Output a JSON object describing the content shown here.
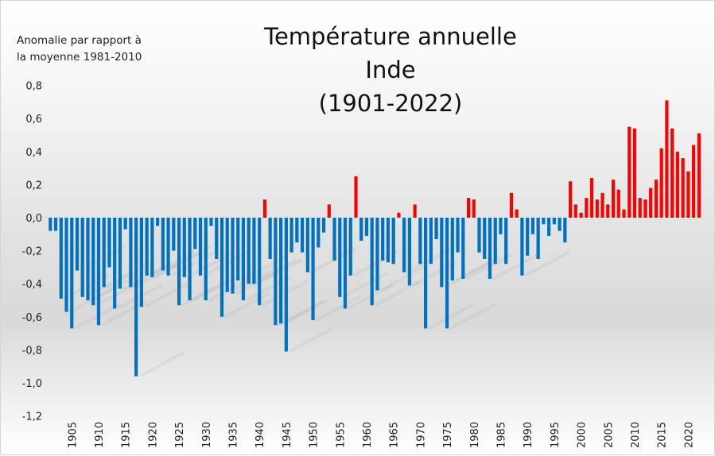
{
  "chart_data": {
    "type": "bar",
    "title_lines": [
      "Température annuelle",
      "Inde",
      "(1901-2022)"
    ],
    "ylabel_lines": [
      "Anomalie par rapport à",
      "la moyenne 1981-2010"
    ],
    "xlabel": "",
    "ylim": [
      -1.2,
      0.8
    ],
    "yticks": [
      0.8,
      0.6,
      0.4,
      0.2,
      0.0,
      -0.2,
      -0.4,
      -0.6,
      -0.8,
      -1.0,
      -1.2
    ],
    "ytick_labels": [
      "0,8",
      "0,6",
      "0,4",
      "0,2",
      "0,0",
      "-0,2",
      "-0,4",
      "-0,6",
      "-0,8",
      "-1,0",
      "-1,2"
    ],
    "xtick_labels": [
      "1905",
      "1910",
      "1915",
      "1920",
      "1925",
      "1930",
      "1935",
      "1940",
      "1945",
      "1950",
      "1955",
      "1960",
      "1965",
      "1970",
      "1975",
      "1980",
      "1985",
      "1990",
      "1995",
      "2000",
      "2005",
      "2010",
      "2015",
      "2020"
    ],
    "grid": false,
    "legend": "none",
    "colors": {
      "positive": "#ff0000",
      "negative": "#0070c0"
    },
    "years": [
      1901,
      1902,
      1903,
      1904,
      1905,
      1906,
      1907,
      1908,
      1909,
      1910,
      1911,
      1912,
      1913,
      1914,
      1915,
      1916,
      1917,
      1918,
      1919,
      1920,
      1921,
      1922,
      1923,
      1924,
      1925,
      1926,
      1927,
      1928,
      1929,
      1930,
      1931,
      1932,
      1933,
      1934,
      1935,
      1936,
      1937,
      1938,
      1939,
      1940,
      1941,
      1942,
      1943,
      1944,
      1945,
      1946,
      1947,
      1948,
      1949,
      1950,
      1951,
      1952,
      1953,
      1954,
      1955,
      1956,
      1957,
      1958,
      1959,
      1960,
      1961,
      1962,
      1963,
      1964,
      1965,
      1966,
      1967,
      1968,
      1969,
      1970,
      1971,
      1972,
      1973,
      1974,
      1975,
      1976,
      1977,
      1978,
      1979,
      1980,
      1981,
      1982,
      1983,
      1984,
      1985,
      1986,
      1987,
      1988,
      1989,
      1990,
      1991,
      1992,
      1993,
      1994,
      1995,
      1996,
      1997,
      1998,
      1999,
      2000,
      2001,
      2002,
      2003,
      2004,
      2005,
      2006,
      2007,
      2008,
      2009,
      2010,
      2011,
      2012,
      2013,
      2014,
      2015,
      2016,
      2017,
      2018,
      2019,
      2020,
      2021,
      2022
    ],
    "values": [
      -0.08,
      -0.08,
      -0.49,
      -0.57,
      -0.67,
      -0.32,
      -0.48,
      -0.5,
      -0.53,
      -0.65,
      -0.42,
      -0.3,
      -0.55,
      -0.43,
      -0.07,
      -0.42,
      -0.96,
      -0.54,
      -0.35,
      -0.36,
      -0.05,
      -0.32,
      -0.35,
      -0.2,
      -0.53,
      -0.36,
      -0.5,
      -0.19,
      -0.35,
      -0.5,
      -0.05,
      -0.25,
      -0.6,
      -0.45,
      -0.46,
      -0.38,
      -0.5,
      -0.4,
      -0.4,
      -0.53,
      0.11,
      -0.25,
      -0.65,
      -0.64,
      -0.81,
      -0.21,
      -0.15,
      -0.21,
      -0.33,
      -0.62,
      -0.18,
      -0.09,
      0.08,
      -0.26,
      -0.48,
      -0.55,
      -0.35,
      0.25,
      -0.14,
      -0.11,
      -0.53,
      -0.44,
      -0.26,
      -0.27,
      -0.28,
      0.03,
      -0.33,
      -0.41,
      0.08,
      -0.28,
      -0.67,
      -0.28,
      -0.13,
      -0.42,
      -0.67,
      -0.38,
      -0.21,
      -0.37,
      0.12,
      0.11,
      -0.21,
      -0.25,
      -0.37,
      -0.28,
      -0.1,
      -0.28,
      0.15,
      0.05,
      -0.35,
      -0.23,
      -0.1,
      -0.25,
      -0.04,
      -0.11,
      -0.04,
      -0.08,
      -0.15,
      0.22,
      0.08,
      0.03,
      0.12,
      0.24,
      0.11,
      0.15,
      0.08,
      0.23,
      0.17,
      0.05,
      0.55,
      0.54,
      0.12,
      0.11,
      0.18,
      0.23,
      0.42,
      0.71,
      0.54,
      0.4,
      0.36,
      0.28,
      0.44,
      0.51
    ]
  }
}
